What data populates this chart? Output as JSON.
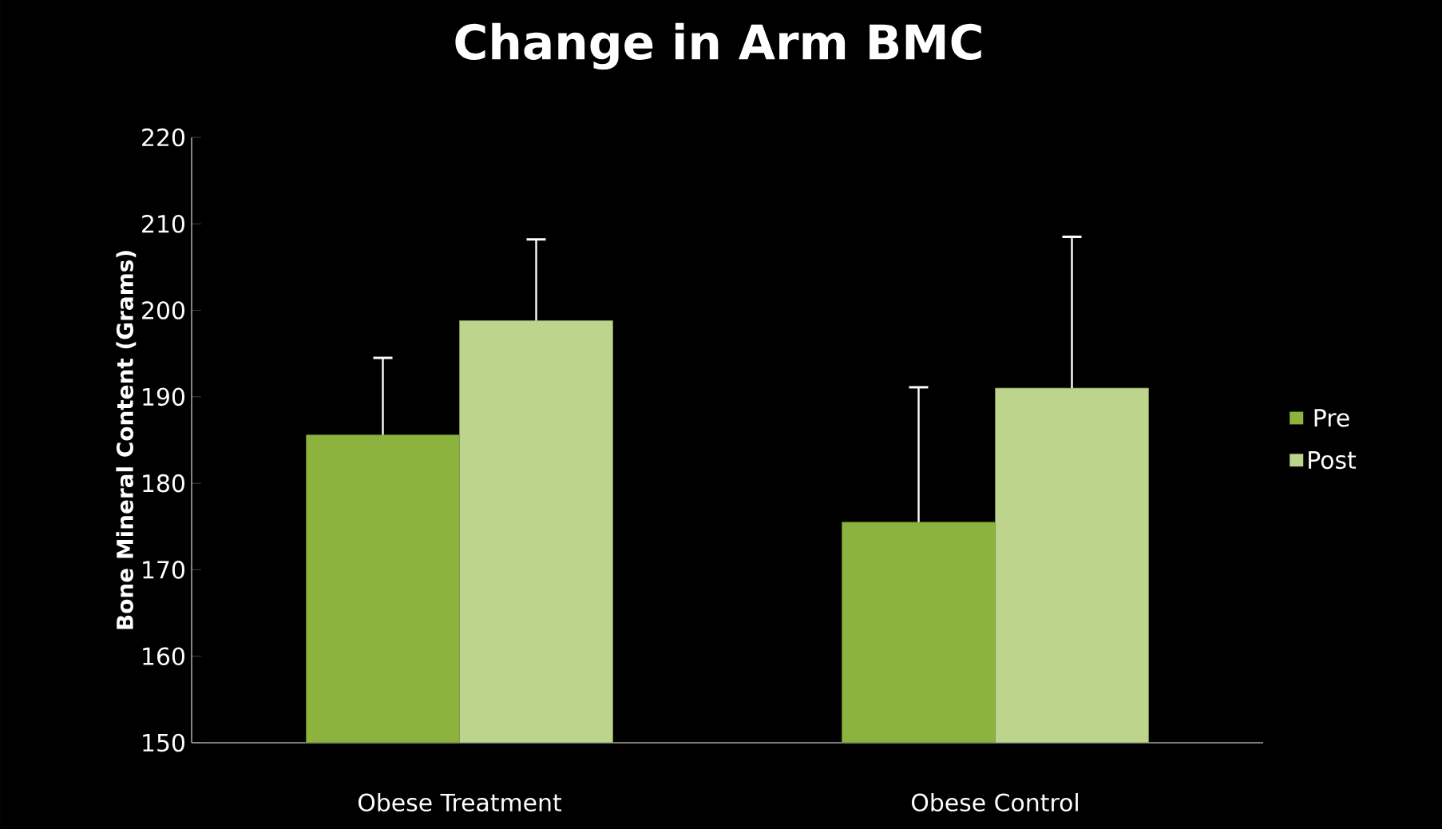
{
  "chart_data": {
    "type": "bar",
    "title": "Change in Arm BMC",
    "ylabel": "Bone Mineral Content (Grams)",
    "categories": [
      "Obese Treatment",
      "Obese Control"
    ],
    "series": [
      {
        "name": "Pre",
        "color": "#8db33f",
        "values": [
          185.6,
          175.5
        ],
        "errors": [
          [
            185.6,
            194.5
          ],
          [
            175.5,
            191.1
          ]
        ]
      },
      {
        "name": "Post",
        "color": "#bcd48c",
        "values": [
          198.8,
          191
        ],
        "errors": [
          [
            198.8,
            208.2
          ],
          [
            191,
            208.5
          ]
        ]
      }
    ],
    "ylim": [
      150,
      220
    ],
    "yticks": [
      150,
      160,
      170,
      180,
      190,
      200,
      210,
      220
    ],
    "grid": false,
    "legend": "right"
  }
}
